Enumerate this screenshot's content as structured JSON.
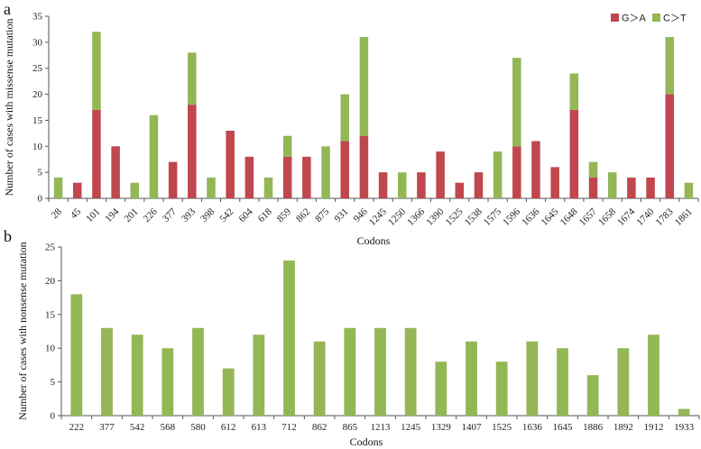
{
  "colors": {
    "g_to_a": "#c0474e",
    "c_to_t": "#93b755",
    "nonsense": "#93b755"
  },
  "chart_data": [
    {
      "panel_label": "a",
      "type": "bar",
      "stacked": true,
      "ylabel": "Number of cases with  missense mutation",
      "xlabel": "Codons",
      "ylim": [
        0,
        35
      ],
      "yticks": [
        0,
        5,
        10,
        15,
        20,
        25,
        30,
        35
      ],
      "legend_position": "top-right",
      "categories": [
        "28",
        "45",
        "101",
        "194",
        "201",
        "226",
        "377",
        "393",
        "398",
        "542",
        "604",
        "618",
        "859",
        "862",
        "875",
        "931",
        "946",
        "1245",
        "1250",
        "1366",
        "1390",
        "1525",
        "1538",
        "1575",
        "1596",
        "1636",
        "1645",
        "1648",
        "1657",
        "1658",
        "1674",
        "1740",
        "1783",
        "1861"
      ],
      "series": [
        {
          "name": "G＞A",
          "color_key": "g_to_a",
          "values": [
            0,
            3,
            17,
            10,
            0,
            0,
            7,
            18,
            0,
            13,
            8,
            0,
            8,
            8,
            0,
            11,
            12,
            5,
            0,
            5,
            9,
            3,
            5,
            0,
            10,
            11,
            6,
            17,
            4,
            0,
            4,
            4,
            20,
            0
          ]
        },
        {
          "name": "C＞T",
          "color_key": "c_to_t",
          "values": [
            4,
            0,
            15,
            0,
            3,
            16,
            0,
            10,
            4,
            0,
            0,
            4,
            4,
            0,
            10,
            9,
            19,
            0,
            5,
            0,
            0,
            0,
            0,
            9,
            17,
            0,
            0,
            7,
            3,
            5,
            0,
            0,
            11,
            3
          ]
        }
      ]
    },
    {
      "panel_label": "b",
      "type": "bar",
      "stacked": false,
      "ylabel": "Number of cases with nonsense mutation",
      "xlabel": "Codons",
      "ylim": [
        0,
        25
      ],
      "yticks": [
        0,
        5,
        10,
        15,
        20,
        25
      ],
      "categories": [
        "222",
        "377",
        "542",
        "568",
        "580",
        "612",
        "613",
        "712",
        "862",
        "865",
        "1213",
        "1245",
        "1329",
        "1407",
        "1525",
        "1636",
        "1645",
        "1886",
        "1892",
        "1912",
        "1933"
      ],
      "series": [
        {
          "color_key": "nonsense",
          "values": [
            18,
            13,
            12,
            10,
            13,
            7,
            12,
            23,
            11,
            13,
            13,
            13,
            8,
            11,
            8,
            11,
            10,
            6,
            10,
            12,
            1
          ]
        }
      ]
    }
  ]
}
